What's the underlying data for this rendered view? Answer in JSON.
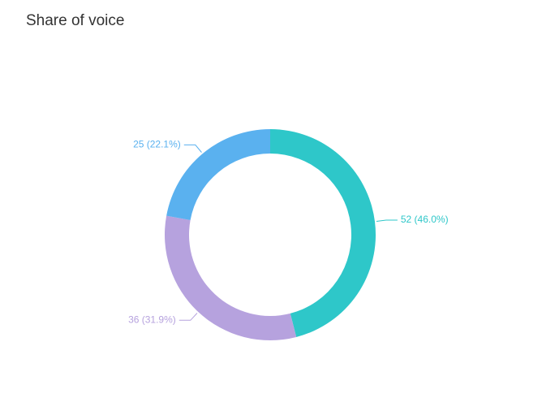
{
  "chart_data": {
    "type": "donut",
    "title": "Share of voice",
    "values": [
      52,
      36,
      25
    ],
    "value_labels": [
      "52 (46.0%)",
      "36 (31.9%)",
      "25 (22.1%)"
    ],
    "colors": [
      "#2ec7c9",
      "#b6a2de",
      "#5ab1ef"
    ]
  }
}
